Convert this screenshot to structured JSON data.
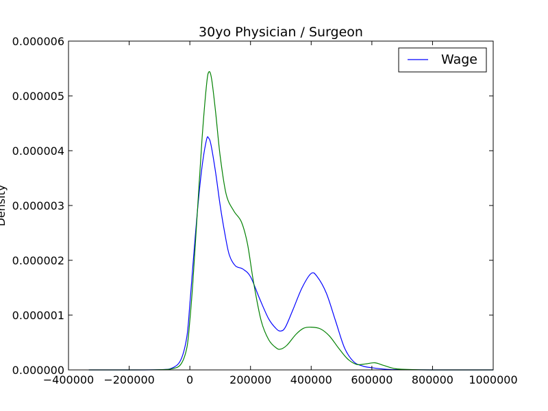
{
  "chart_data": {
    "type": "line",
    "title": "30yo Physician / Surgeon",
    "xlabel": "",
    "ylabel": "Density",
    "xlim": [
      -400000,
      1000000
    ],
    "ylim": [
      0,
      6e-06
    ],
    "grid": false,
    "legend": {
      "placement": "top-right",
      "entries": [
        "Wage"
      ]
    },
    "x_ticks": [
      {
        "value": -400000,
        "label": "−400000"
      },
      {
        "value": -200000,
        "label": "−200000"
      },
      {
        "value": 0,
        "label": "0"
      },
      {
        "value": 200000,
        "label": "200000"
      },
      {
        "value": 400000,
        "label": "400000"
      },
      {
        "value": 600000,
        "label": "600000"
      },
      {
        "value": 800000,
        "label": "800000"
      },
      {
        "value": 1000000,
        "label": "1000000"
      }
    ],
    "y_ticks": [
      {
        "value": 0,
        "label": "0.000000"
      },
      {
        "value": 1e-06,
        "label": "0.000001"
      },
      {
        "value": 2e-06,
        "label": "0.000002"
      },
      {
        "value": 3e-06,
        "label": "0.000003"
      },
      {
        "value": 4e-06,
        "label": "0.000004"
      },
      {
        "value": 5e-06,
        "label": "0.000005"
      },
      {
        "value": 6e-06,
        "label": "0.000006"
      }
    ],
    "series": [
      {
        "name": "Wage",
        "color": "#0000ff",
        "points": [
          [
            -333000,
            0.0
          ],
          [
            -200000,
            0.0
          ],
          [
            -100000,
            5e-09
          ],
          [
            -60000,
            3e-08
          ],
          [
            -30000,
            1.8e-07
          ],
          [
            -10000,
            6e-07
          ],
          [
            0,
            1.2e-06
          ],
          [
            10000,
            1.9e-06
          ],
          [
            25000,
            2.9e-06
          ],
          [
            40000,
            3.7e-06
          ],
          [
            55000,
            4.2e-06
          ],
          [
            62000,
            4.23e-06
          ],
          [
            70000,
            4.1e-06
          ],
          [
            85000,
            3.6e-06
          ],
          [
            100000,
            3e-06
          ],
          [
            115000,
            2.5e-06
          ],
          [
            130000,
            2.1e-06
          ],
          [
            150000,
            1.9e-06
          ],
          [
            175000,
            1.84e-06
          ],
          [
            200000,
            1.7e-06
          ],
          [
            230000,
            1.3e-06
          ],
          [
            260000,
            9.3e-07
          ],
          [
            285000,
            7.5e-07
          ],
          [
            300000,
            7.1e-07
          ],
          [
            315000,
            7.8e-07
          ],
          [
            340000,
            1.1e-06
          ],
          [
            370000,
            1.5e-06
          ],
          [
            400000,
            1.76e-06
          ],
          [
            420000,
            1.7e-06
          ],
          [
            450000,
            1.4e-06
          ],
          [
            480000,
            9e-07
          ],
          [
            510000,
            4e-07
          ],
          [
            540000,
            1.5e-07
          ],
          [
            570000,
            7e-08
          ],
          [
            600000,
            4e-08
          ],
          [
            650000,
            1e-08
          ],
          [
            700000,
            3e-09
          ],
          [
            800000,
            0.0
          ],
          [
            1000000,
            0.0
          ]
        ]
      },
      {
        "name": "",
        "color": "#008000",
        "points": [
          [
            -333000,
            0.0
          ],
          [
            -200000,
            0.0
          ],
          [
            -100000,
            4e-09
          ],
          [
            -60000,
            2e-08
          ],
          [
            -30000,
            1e-07
          ],
          [
            -10000,
            4e-07
          ],
          [
            0,
            9e-07
          ],
          [
            10000,
            1.6e-06
          ],
          [
            25000,
            2.9e-06
          ],
          [
            40000,
            4.2e-06
          ],
          [
            55000,
            5.2e-06
          ],
          [
            63000,
            5.44e-06
          ],
          [
            72000,
            5.3e-06
          ],
          [
            85000,
            4.7e-06
          ],
          [
            100000,
            3.9e-06
          ],
          [
            120000,
            3.2e-06
          ],
          [
            145000,
            2.9e-06
          ],
          [
            170000,
            2.7e-06
          ],
          [
            190000,
            2.3e-06
          ],
          [
            210000,
            1.6e-06
          ],
          [
            235000,
            9e-07
          ],
          [
            260000,
            5.5e-07
          ],
          [
            285000,
            4e-07
          ],
          [
            300000,
            3.8e-07
          ],
          [
            320000,
            4.5e-07
          ],
          [
            350000,
            6.5e-07
          ],
          [
            375000,
            7.6e-07
          ],
          [
            400000,
            7.8e-07
          ],
          [
            430000,
            7.5e-07
          ],
          [
            460000,
            6.2e-07
          ],
          [
            490000,
            4e-07
          ],
          [
            520000,
            2e-07
          ],
          [
            550000,
            1e-07
          ],
          [
            580000,
            1.1e-07
          ],
          [
            610000,
            1.3e-07
          ],
          [
            640000,
            8e-08
          ],
          [
            680000,
            2e-08
          ],
          [
            750000,
            3e-09
          ],
          [
            850000,
            0.0
          ],
          [
            1000000,
            0.0
          ]
        ]
      }
    ]
  }
}
